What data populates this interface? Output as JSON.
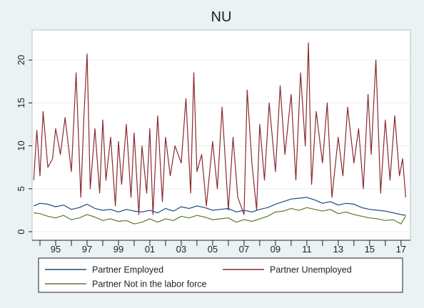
{
  "chart_data": {
    "type": "line",
    "title": "NU",
    "xlabel": "",
    "ylabel": "",
    "x_range": [
      1993.5,
      2017.6
    ],
    "ylim": [
      -1,
      23.5
    ],
    "y_ticks": [
      0,
      5,
      10,
      15,
      20
    ],
    "y_tick_labels": [
      "0",
      "5",
      "10",
      "15",
      "20"
    ],
    "x_labeled_ticks": [
      1995,
      1997,
      1999,
      2001,
      2003,
      2005,
      2007,
      2009,
      2011,
      2013,
      2015,
      2017
    ],
    "x_tick_labels": [
      "95",
      "97",
      "99",
      "01",
      "03",
      "05",
      "07",
      "09",
      "11",
      "13",
      "15",
      "17"
    ],
    "x_minor_ticks": [
      1994,
      1996,
      1998,
      2000,
      2002,
      2004,
      2006,
      2008,
      2010,
      2012,
      2014,
      2016
    ],
    "grid": "horizontal",
    "legend_position": "bottom",
    "series": [
      {
        "name": "Partner Employed",
        "color": "#1c4a7c",
        "x": [
          1993.6,
          1994.0,
          1994.5,
          1995.0,
          1995.5,
          1996.0,
          1996.5,
          1997.0,
          1997.5,
          1998.0,
          1998.5,
          1999.0,
          1999.5,
          2000.0,
          2000.5,
          2001.0,
          2001.5,
          2002.0,
          2002.5,
          2003.0,
          2003.5,
          2004.0,
          2004.5,
          2005.0,
          2005.5,
          2006.0,
          2006.5,
          2007.0,
          2007.5,
          2008.0,
          2008.5,
          2009.0,
          2009.5,
          2010.0,
          2010.5,
          2011.0,
          2011.5,
          2012.0,
          2012.5,
          2013.0,
          2013.5,
          2014.0,
          2014.5,
          2015.0,
          2015.5,
          2016.0,
          2016.5,
          2017.0,
          2017.3
        ],
        "y": [
          3.0,
          3.3,
          3.2,
          2.9,
          3.1,
          2.6,
          2.8,
          3.2,
          2.7,
          2.5,
          2.6,
          2.3,
          2.6,
          2.4,
          2.3,
          2.5,
          2.2,
          2.7,
          2.4,
          2.9,
          2.7,
          3.0,
          2.8,
          2.5,
          2.6,
          2.7,
          2.3,
          2.5,
          2.3,
          2.6,
          2.8,
          3.2,
          3.5,
          3.8,
          3.9,
          4.0,
          3.7,
          3.3,
          3.5,
          3.1,
          3.3,
          3.2,
          2.8,
          2.6,
          2.5,
          2.4,
          2.2,
          2.0,
          1.9
        ]
      },
      {
        "name": "Partner Unemployed",
        "color": "#8a2a2f",
        "x": [
          1993.6,
          1993.8,
          1994.0,
          1994.2,
          1994.5,
          1994.8,
          1995.0,
          1995.3,
          1995.6,
          1996.0,
          1996.3,
          1996.6,
          1996.8,
          1997.0,
          1997.2,
          1997.5,
          1997.8,
          1998.0,
          1998.2,
          1998.5,
          1998.8,
          1999.0,
          1999.2,
          1999.5,
          1999.8,
          2000.0,
          2000.3,
          2000.5,
          2000.8,
          2001.0,
          2001.2,
          2001.5,
          2001.8,
          2002.0,
          2002.3,
          2002.6,
          2003.0,
          2003.3,
          2003.6,
          2003.8,
          2004.0,
          2004.3,
          2004.6,
          2005.0,
          2005.3,
          2005.6,
          2006.0,
          2006.3,
          2006.6,
          2007.0,
          2007.2,
          2007.5,
          2007.8,
          2008.0,
          2008.3,
          2008.6,
          2009.0,
          2009.3,
          2009.6,
          2010.0,
          2010.3,
          2010.6,
          2010.9,
          2011.1,
          2011.3,
          2011.6,
          2012.0,
          2012.3,
          2012.6,
          2013.0,
          2013.3,
          2013.6,
          2014.0,
          2014.3,
          2014.6,
          2014.9,
          2015.1,
          2015.4,
          2015.7,
          2016.0,
          2016.3,
          2016.6,
          2016.9,
          2017.1,
          2017.3
        ],
        "y": [
          6.0,
          11.8,
          6.5,
          14.0,
          7.5,
          8.5,
          12.0,
          9.0,
          13.3,
          7.0,
          18.5,
          4.0,
          13.5,
          20.7,
          5.0,
          12.0,
          4.5,
          13.0,
          6.0,
          11.0,
          3.0,
          10.5,
          5.5,
          12.5,
          4.0,
          11.5,
          2.0,
          10.0,
          4.5,
          12.0,
          2.0,
          13.5,
          3.5,
          11.0,
          6.5,
          10.0,
          8.0,
          15.5,
          4.5,
          18.5,
          7.0,
          9.0,
          3.0,
          10.5,
          5.0,
          14.5,
          2.5,
          11.0,
          4.0,
          2.0,
          16.5,
          8.0,
          2.5,
          12.5,
          6.0,
          15.0,
          7.0,
          17.0,
          9.0,
          16.0,
          6.0,
          18.5,
          10.0,
          22.0,
          5.5,
          14.0,
          8.0,
          15.0,
          4.0,
          11.0,
          6.5,
          14.5,
          8.0,
          12.0,
          5.0,
          16.0,
          9.0,
          20.0,
          4.5,
          13.0,
          6.0,
          13.5,
          6.5,
          8.5,
          4.0
        ]
      },
      {
        "name": "Partner Not in the labor force",
        "color": "#5b7a2c",
        "x": [
          1993.6,
          1994.0,
          1994.5,
          1995.0,
          1995.5,
          1996.0,
          1996.5,
          1997.0,
          1997.5,
          1998.0,
          1998.5,
          1999.0,
          1999.5,
          2000.0,
          2000.5,
          2001.0,
          2001.5,
          2002.0,
          2002.5,
          2003.0,
          2003.5,
          2004.0,
          2004.5,
          2005.0,
          2005.5,
          2006.0,
          2006.5,
          2007.0,
          2007.5,
          2008.0,
          2008.5,
          2009.0,
          2009.5,
          2010.0,
          2010.5,
          2011.0,
          2011.5,
          2012.0,
          2012.5,
          2013.0,
          2013.5,
          2014.0,
          2014.5,
          2015.0,
          2015.5,
          2016.0,
          2016.5,
          2017.0,
          2017.3
        ],
        "y": [
          2.2,
          2.1,
          1.8,
          1.6,
          1.9,
          1.4,
          1.6,
          2.0,
          1.7,
          1.3,
          1.5,
          1.2,
          1.3,
          0.9,
          1.1,
          1.5,
          1.1,
          1.5,
          1.3,
          1.8,
          1.6,
          1.9,
          1.7,
          1.4,
          1.5,
          1.6,
          1.1,
          1.4,
          1.2,
          1.5,
          1.8,
          2.3,
          2.4,
          2.7,
          2.5,
          2.8,
          2.6,
          2.4,
          2.6,
          2.1,
          2.3,
          2.0,
          1.8,
          1.6,
          1.5,
          1.3,
          1.4,
          0.9,
          1.8
        ]
      }
    ]
  }
}
